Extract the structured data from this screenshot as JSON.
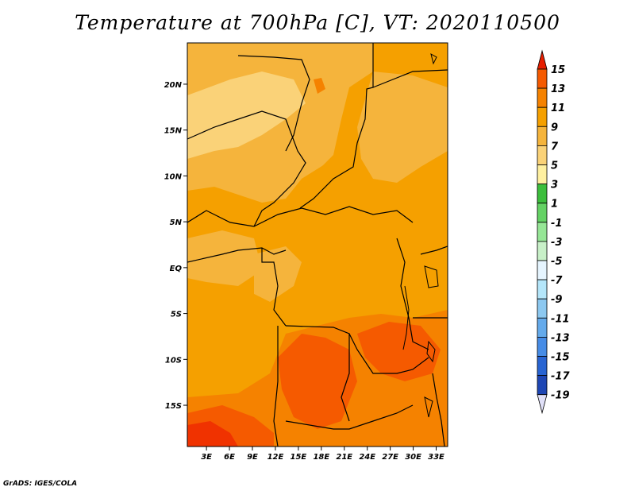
{
  "title": "Temperature at 700hPa [C], VT: 2020110500",
  "credit": "GrADS: IGES/COLA",
  "map": {
    "lat_labels": [
      "20N",
      "15N",
      "10N",
      "5N",
      "EQ",
      "5S",
      "10S",
      "15S"
    ],
    "lat_values": [
      20,
      15,
      10,
      5,
      0,
      -5,
      -10,
      -15
    ],
    "lon_labels": [
      "3E",
      "6E",
      "9E",
      "12E",
      "15E",
      "18E",
      "21E",
      "24E",
      "27E",
      "30E",
      "33E"
    ],
    "lon_values": [
      3,
      6,
      9,
      12,
      15,
      18,
      21,
      24,
      27,
      30,
      33
    ],
    "lon_range": [
      0.5,
      34.5
    ],
    "lat_range": [
      -19.5,
      24.5
    ]
  },
  "colorbar": {
    "labels": [
      "15",
      "13",
      "11",
      "9",
      "7",
      "5",
      "3",
      "1",
      "-1",
      "-3",
      "-5",
      "-7",
      "-9",
      "-11",
      "-13",
      "-15",
      "-17",
      "-19"
    ],
    "colors": [
      "#f03200",
      "#f55a00",
      "#f58200",
      "#f5a000",
      "#f5b43c",
      "#fad278",
      "#fff0a0",
      "#3cbe3c",
      "#64d264",
      "#96e696",
      "#c8f0c8",
      "#e6f5ff",
      "#b4e6fa",
      "#8cc8f0",
      "#64aaeb",
      "#468ce6",
      "#2864d2",
      "#1e46b4",
      "#0a1e78"
    ],
    "top_arrow_color": "#e61e00",
    "bottom_arrow_color": "#e0e0f8"
  }
}
